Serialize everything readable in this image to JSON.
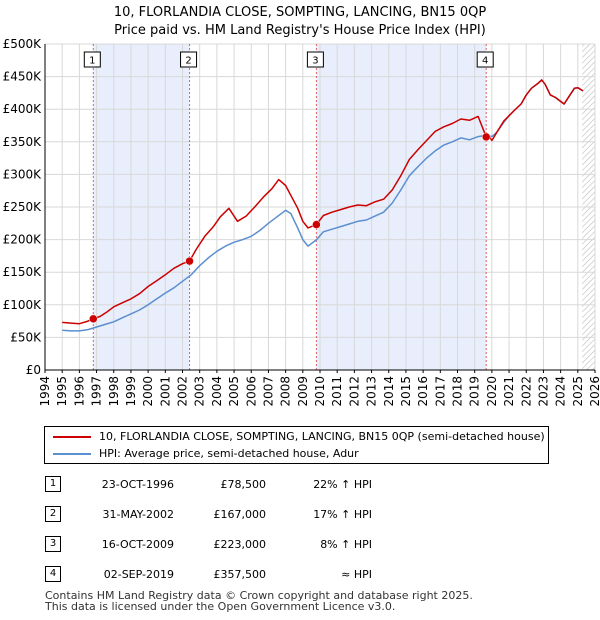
{
  "title": {
    "line1": "10, FLORLANDIA CLOSE, SOMPTING, LANCING, BN15 0QP",
    "line2": "Price paid vs. HM Land Registry's House Price Index (HPI)"
  },
  "chart_data": {
    "type": "line",
    "title": "10, FLORLANDIA CLOSE, SOMPTING, LANCING, BN15 0QP — Price paid vs. HM Land Registry's House Price Index (HPI)",
    "xlim": [
      1995.0,
      2026.0
    ],
    "ylim": [
      0,
      500000
    ],
    "x_ticks": [
      "1994",
      "1995",
      "1996",
      "1997",
      "1998",
      "1999",
      "2000",
      "2001",
      "2002",
      "2003",
      "2004",
      "2005",
      "2006",
      "2007",
      "2008",
      "2009",
      "2010",
      "2011",
      "2012",
      "2013",
      "2014",
      "2015",
      "2016",
      "2017",
      "2018",
      "2019",
      "2020",
      "2021",
      "2022",
      "2023",
      "2024",
      "2025",
      "2026"
    ],
    "y_ticks": [
      {
        "value": 0,
        "label": "£0"
      },
      {
        "value": 50000,
        "label": "£50K"
      },
      {
        "value": 100000,
        "label": "£100K"
      },
      {
        "value": 150000,
        "label": "£150K"
      },
      {
        "value": 200000,
        "label": "£200K"
      },
      {
        "value": 250000,
        "label": "£250K"
      },
      {
        "value": 300000,
        "label": "£300K"
      },
      {
        "value": 350000,
        "label": "£350K"
      },
      {
        "value": 400000,
        "label": "£400K"
      },
      {
        "value": 450000,
        "label": "£450K"
      },
      {
        "value": 500000,
        "label": "£500K"
      }
    ],
    "grid": true,
    "hatched_after": 2025.25,
    "series": [
      {
        "name": "10, FLORLANDIA CLOSE, SOMPTING, LANCING, BN15 0QP (semi-detached house)",
        "color": "#cc0000",
        "x": [
          1995.0,
          1995.5,
          1996.0,
          1996.5,
          1996.8,
          1997.2,
          1997.6,
          1998.0,
          1998.5,
          1999.0,
          1999.5,
          2000.0,
          2000.5,
          2001.0,
          2001.5,
          2002.0,
          2002.41,
          2002.8,
          2003.3,
          2003.8,
          2004.2,
          2004.7,
          2005.2,
          2005.7,
          2006.2,
          2006.7,
          2007.2,
          2007.6,
          2008.0,
          2008.3,
          2008.7,
          2009.0,
          2009.3,
          2009.79,
          2010.2,
          2010.7,
          2011.2,
          2011.7,
          2012.2,
          2012.7,
          2013.2,
          2013.7,
          2014.2,
          2014.7,
          2015.2,
          2015.7,
          2016.2,
          2016.7,
          2017.2,
          2017.7,
          2018.2,
          2018.7,
          2019.2,
          2019.67,
          2019.8,
          2020.0,
          2020.3,
          2020.7,
          2021.0,
          2021.3,
          2021.7,
          2022.0,
          2022.3,
          2022.7,
          2022.9,
          2023.1,
          2023.4,
          2023.7,
          2024.0,
          2024.2,
          2024.5,
          2024.8,
          2025.0,
          2025.3
        ],
        "values": [
          73000,
          72000,
          71000,
          75000,
          78500,
          82000,
          89000,
          97000,
          103000,
          109000,
          117000,
          128000,
          137000,
          146000,
          156000,
          163000,
          167000,
          185000,
          205000,
          220000,
          235000,
          248000,
          228000,
          236000,
          250000,
          265000,
          278000,
          292000,
          283000,
          268000,
          248000,
          228000,
          218000,
          223000,
          237000,
          242000,
          246000,
          250000,
          253000,
          252000,
          258000,
          262000,
          276000,
          298000,
          323000,
          338000,
          352000,
          366000,
          373000,
          378000,
          385000,
          383000,
          389000,
          357500,
          360000,
          352000,
          365000,
          382000,
          390000,
          398000,
          408000,
          422000,
          432000,
          440000,
          445000,
          438000,
          422000,
          418000,
          412000,
          408000,
          420000,
          432000,
          433000,
          428000
        ]
      },
      {
        "name": "HPI: Average price, semi-detached house, Adur",
        "color": "#5b8fcf",
        "x": [
          1995.0,
          1995.5,
          1996.0,
          1996.5,
          1997.0,
          1997.5,
          1998.0,
          1998.5,
          1999.0,
          1999.5,
          2000.0,
          2000.5,
          2001.0,
          2001.5,
          2002.0,
          2002.5,
          2003.0,
          2003.5,
          2004.0,
          2004.5,
          2005.0,
          2005.5,
          2006.0,
          2006.5,
          2007.0,
          2007.5,
          2008.0,
          2008.3,
          2008.7,
          2009.0,
          2009.3,
          2009.8,
          2010.2,
          2010.7,
          2011.2,
          2011.7,
          2012.2,
          2012.7,
          2013.2,
          2013.7,
          2014.2,
          2014.7,
          2015.2,
          2015.7,
          2016.2,
          2016.7,
          2017.2,
          2017.7,
          2018.2,
          2018.7,
          2019.2,
          2019.7,
          2020.0,
          2020.3,
          2020.7,
          2021.0,
          2021.3,
          2021.7,
          2022.0,
          2022.3,
          2022.7,
          2022.9,
          2023.1,
          2023.4,
          2023.7,
          2024.0,
          2024.2,
          2024.5,
          2024.8,
          2025.0,
          2025.3
        ],
        "values": [
          61000,
          60000,
          60000,
          62000,
          66000,
          70000,
          74000,
          80000,
          86000,
          92000,
          100000,
          109000,
          118000,
          126000,
          136000,
          146000,
          160000,
          172000,
          182000,
          190000,
          196000,
          200000,
          205000,
          214000,
          225000,
          235000,
          245000,
          240000,
          218000,
          200000,
          190000,
          200000,
          212000,
          216000,
          220000,
          224000,
          228000,
          230000,
          236000,
          242000,
          256000,
          276000,
          298000,
          312000,
          325000,
          336000,
          345000,
          350000,
          356000,
          353000,
          358000,
          360000,
          358000,
          365000,
          380000,
          390000,
          398000,
          408000,
          422000,
          432000,
          440000,
          445000,
          438000,
          422000,
          418000,
          412000,
          408000,
          420000,
          432000,
          433000,
          428000
        ]
      }
    ],
    "sales": [
      {
        "id": "1",
        "x": 1996.81,
        "price": 78500,
        "vline_x": 1996.81
      },
      {
        "id": "2",
        "x": 2002.41,
        "price": 167000,
        "vline_x": 2002.41
      },
      {
        "id": "3",
        "x": 2009.79,
        "price": 223000,
        "vline_x": 2009.79
      },
      {
        "id": "4",
        "x": 2019.67,
        "price": 357500,
        "vline_x": 2019.67
      }
    ],
    "shaded_ranges": [
      [
        1996.81,
        2002.41
      ],
      [
        2009.79,
        2019.67
      ]
    ]
  },
  "legend": {
    "property_label": "10, FLORLANDIA CLOSE, SOMPTING, LANCING, BN15 0QP (semi-detached house)",
    "hpi_label": "HPI: Average price, semi-detached house, Adur",
    "property_color": "#cc0000",
    "hpi_color": "#5b8fcf"
  },
  "sales_table": [
    {
      "num": "1",
      "date": "23-OCT-1996",
      "price": "£78,500",
      "hpi": "22% ↑ HPI"
    },
    {
      "num": "2",
      "date": "31-MAY-2002",
      "price": "£167,000",
      "hpi": "17% ↑ HPI"
    },
    {
      "num": "3",
      "date": "16-OCT-2009",
      "price": "£223,000",
      "hpi": "8% ↑ HPI"
    },
    {
      "num": "4",
      "date": "02-SEP-2019",
      "price": "£357,500",
      "hpi": "≈ HPI"
    }
  ],
  "footer": {
    "line1": "Contains HM Land Registry data © Crown copyright and database right 2025.",
    "line2": "This data is licensed under the Open Government Licence v3.0."
  }
}
